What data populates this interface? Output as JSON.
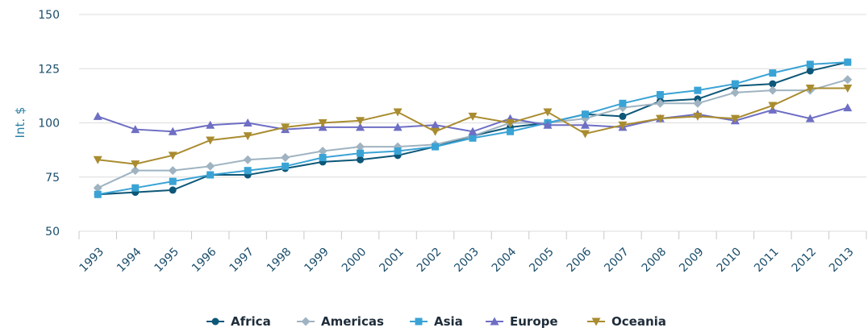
{
  "chart_data": {
    "type": "line",
    "ylabel": "Int. $",
    "xlabel": "",
    "title": "",
    "ylim": [
      50,
      150
    ],
    "yticks": [
      50,
      75,
      100,
      125,
      150
    ],
    "grid": true,
    "legend_position": "bottom",
    "categories": [
      "1993",
      "1994",
      "1995",
      "1996",
      "1997",
      "1998",
      "1999",
      "2000",
      "2001",
      "2002",
      "2003",
      "2004",
      "2005",
      "2006",
      "2007",
      "2008",
      "2009",
      "2010",
      "2011",
      "2012",
      "2013"
    ],
    "series": [
      {
        "name": "Africa",
        "color": "#0d5778",
        "marker": "circle",
        "values": [
          67,
          68,
          69,
          76,
          76,
          79,
          82,
          83,
          85,
          89,
          94,
          98,
          100,
          104,
          103,
          110,
          111,
          117,
          118,
          124,
          128
        ]
      },
      {
        "name": "Americas",
        "color": "#9fb3c1",
        "marker": "diamond",
        "values": [
          70,
          78,
          78,
          80,
          83,
          84,
          87,
          89,
          89,
          90,
          94,
          100,
          100,
          102,
          107,
          109,
          109,
          114,
          115,
          115,
          120
        ]
      },
      {
        "name": "Asia",
        "color": "#3aa3d5",
        "marker": "square",
        "values": [
          67,
          70,
          73,
          76,
          78,
          80,
          84,
          86,
          87,
          89,
          93,
          96,
          100,
          104,
          109,
          113,
          115,
          118,
          123,
          127,
          128
        ]
      },
      {
        "name": "Europe",
        "color": "#6e6ec4",
        "marker": "triangle-up",
        "values": [
          103,
          97,
          96,
          99,
          100,
          97,
          98,
          98,
          98,
          99,
          96,
          102,
          99,
          99,
          98,
          102,
          104,
          101,
          106,
          102,
          107
        ]
      },
      {
        "name": "Oceania",
        "color": "#a98c2f",
        "marker": "triangle-down",
        "values": [
          83,
          81,
          85,
          92,
          94,
          98,
          100,
          101,
          105,
          96,
          103,
          100,
          105,
          95,
          99,
          102,
          103,
          102,
          108,
          116,
          116
        ]
      }
    ]
  }
}
